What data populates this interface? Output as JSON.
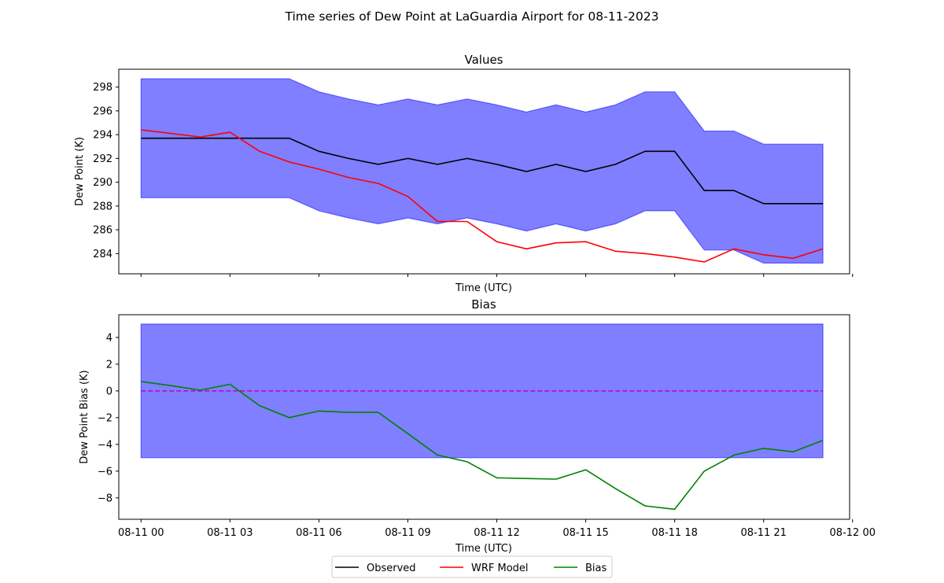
{
  "figure": {
    "suptitle": "Time series of Dew Point at LaGuardia Airport for 08-11-2023"
  },
  "legend": {
    "placement": "bottom-center",
    "items": [
      {
        "label": "Observed",
        "color": "#000000"
      },
      {
        "label": "WRF Model",
        "color": "#ff0000"
      },
      {
        "label": "Bias",
        "color": "#008000"
      }
    ]
  },
  "colors": {
    "band": "#0000ff",
    "observed": "#000000",
    "model": "#ff0000",
    "bias": "#008000",
    "zero_line": "#bf00bf"
  },
  "chart_data": [
    {
      "type": "line",
      "title": "Values",
      "xlabel": "Time (UTC)",
      "ylabel": "Dew Point (K)",
      "xlim": [
        -0.75,
        23.9
      ],
      "ylim": [
        282.3,
        299.5
      ],
      "yticks": [
        284,
        286,
        288,
        290,
        292,
        294,
        296,
        298
      ],
      "yticklabels": [
        "284",
        "286",
        "288",
        "290",
        "292",
        "294",
        "296",
        "298"
      ],
      "xticks": [
        0,
        3,
        6,
        9,
        12,
        15,
        18,
        21,
        24
      ],
      "xticklabels": [],
      "grid": false,
      "x": [
        0,
        1,
        2,
        3,
        4,
        5,
        6,
        7,
        8,
        9,
        10,
        11,
        12,
        13,
        14,
        15,
        16,
        17,
        18,
        19,
        20,
        21,
        22,
        23
      ],
      "series": [
        {
          "name": "Observed",
          "values": [
            293.7,
            293.7,
            293.7,
            293.7,
            293.7,
            293.7,
            292.6,
            292.0,
            291.5,
            292.0,
            291.5,
            292.0,
            291.5,
            290.9,
            291.5,
            290.9,
            291.5,
            292.6,
            292.6,
            289.3,
            289.3,
            288.2,
            288.2,
            288.2
          ]
        },
        {
          "name": "WRF Model",
          "values": [
            294.4,
            294.1,
            293.8,
            294.2,
            292.6,
            291.7,
            291.1,
            290.4,
            289.9,
            288.8,
            286.7,
            286.7,
            285.0,
            284.4,
            284.9,
            285.0,
            284.2,
            284.0,
            283.7,
            283.3,
            284.4,
            283.9,
            283.6,
            284.4
          ]
        }
      ],
      "band": {
        "upper": [
          298.7,
          298.7,
          298.7,
          298.7,
          298.7,
          298.7,
          297.6,
          297.0,
          296.5,
          297.0,
          296.5,
          297.0,
          296.5,
          295.9,
          296.5,
          295.9,
          296.5,
          297.6,
          297.6,
          294.3,
          294.3,
          293.2,
          293.2,
          293.2
        ],
        "lower": [
          288.7,
          288.7,
          288.7,
          288.7,
          288.7,
          288.7,
          287.6,
          287.0,
          286.5,
          287.0,
          286.5,
          287.0,
          286.5,
          285.9,
          286.5,
          285.9,
          286.5,
          287.6,
          287.6,
          284.3,
          284.3,
          283.2,
          283.2,
          283.2
        ]
      }
    },
    {
      "type": "line",
      "title": "Bias",
      "xlabel": "Time (UTC)",
      "ylabel": "Dew Point Bias (K)",
      "xlim": [
        -0.75,
        23.9
      ],
      "ylim": [
        -9.6,
        5.7
      ],
      "yticks": [
        -8,
        -6,
        -4,
        -2,
        0,
        2,
        4
      ],
      "yticklabels": [
        "−8",
        "−6",
        "−4",
        "−2",
        "0",
        "2",
        "4"
      ],
      "xticks": [
        0,
        3,
        6,
        9,
        12,
        15,
        18,
        21,
        24
      ],
      "xticklabels": [
        "08-11 00",
        "08-11 03",
        "08-11 06",
        "08-11 09",
        "08-11 12",
        "08-11 15",
        "08-11 18",
        "08-11 21",
        "08-12 00"
      ],
      "grid": false,
      "x": [
        0,
        1,
        2,
        3,
        4,
        5,
        6,
        7,
        8,
        9,
        10,
        11,
        12,
        13,
        14,
        15,
        16,
        17,
        18,
        19,
        20,
        21,
        22,
        23
      ],
      "series": [
        {
          "name": "Bias",
          "values": [
            0.7,
            0.4,
            0.05,
            0.5,
            -1.1,
            -2.0,
            -1.5,
            -1.6,
            -1.6,
            -3.2,
            -4.8,
            -5.3,
            -6.5,
            -6.55,
            -6.6,
            -5.9,
            -7.3,
            -8.6,
            -8.85,
            -6.0,
            -4.8,
            -4.3,
            -4.55,
            -3.7
          ]
        }
      ],
      "band": {
        "upper_const": 5,
        "lower_const": -5
      },
      "zero_line": 0
    }
  ]
}
